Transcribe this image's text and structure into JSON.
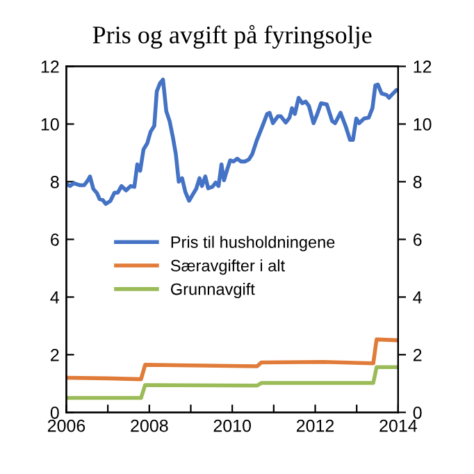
{
  "chart_data": {
    "type": "line",
    "title": "Pris og avgift på fyringsolje",
    "series": [
      {
        "name": "Pris til husholdningene",
        "color": "#4472c4",
        "x": [
          2006.0,
          2006.09,
          2006.18,
          2006.32,
          2006.43,
          2006.52,
          2006.57,
          2006.65,
          2006.74,
          2006.8,
          2006.88,
          2006.95,
          2007.06,
          2007.16,
          2007.24,
          2007.33,
          2007.44,
          2007.55,
          2007.64,
          2007.71,
          2007.78,
          2007.86,
          2007.95,
          2008.03,
          2008.12,
          2008.18,
          2008.26,
          2008.33,
          2008.41,
          2008.49,
          2008.57,
          2008.64,
          2008.71,
          2008.79,
          2008.87,
          2008.96,
          2009.05,
          2009.13,
          2009.21,
          2009.27,
          2009.35,
          2009.42,
          2009.52,
          2009.6,
          2009.67,
          2009.74,
          2009.8,
          2009.88,
          2009.95,
          2010.03,
          2010.12,
          2010.21,
          2010.3,
          2010.4,
          2010.48,
          2010.59,
          2010.72,
          2010.84,
          2010.9,
          2010.98,
          2011.1,
          2011.17,
          2011.29,
          2011.38,
          2011.44,
          2011.51,
          2011.6,
          2011.69,
          2011.77,
          2011.85,
          2011.96,
          2012.05,
          2012.14,
          2012.28,
          2012.41,
          2012.48,
          2012.61,
          2012.73,
          2012.84,
          2012.91,
          2012.99,
          2013.06,
          2013.18,
          2013.29,
          2013.38,
          2013.45,
          2013.51,
          2013.6,
          2013.72,
          2013.78,
          2013.87,
          2013.96,
          2014.0
        ],
        "values": [
          7.92,
          7.85,
          7.95,
          7.88,
          7.88,
          8.05,
          8.18,
          7.75,
          7.6,
          7.4,
          7.36,
          7.23,
          7.33,
          7.62,
          7.62,
          7.85,
          7.7,
          7.85,
          7.82,
          8.6,
          8.38,
          9.12,
          9.33,
          9.73,
          9.94,
          11.13,
          11.42,
          11.54,
          10.44,
          10.1,
          9.53,
          8.95,
          8.0,
          8.12,
          7.64,
          7.34,
          7.56,
          7.75,
          8.12,
          7.85,
          8.18,
          7.77,
          7.82,
          7.97,
          7.85,
          8.6,
          8.05,
          8.43,
          8.74,
          8.7,
          8.8,
          8.7,
          8.7,
          8.77,
          8.95,
          9.43,
          9.9,
          10.35,
          10.39,
          10.03,
          10.27,
          10.27,
          10.05,
          10.22,
          10.55,
          10.35,
          10.91,
          10.72,
          10.78,
          10.62,
          10.03,
          10.35,
          10.72,
          10.68,
          10.1,
          10.03,
          10.39,
          9.94,
          9.45,
          9.45,
          10.19,
          10.03,
          10.19,
          10.22,
          10.55,
          11.34,
          11.37,
          11.06,
          11.01,
          10.91,
          11.05,
          11.18,
          11.18
        ]
      },
      {
        "name": "Særavgifter i alt",
        "color": "#e07b39",
        "x": [
          2006.0,
          2007.0,
          2007.8,
          2007.9,
          2009.0,
          2010.6,
          2010.7,
          2012.2,
          2013.4,
          2013.48,
          2014.0
        ],
        "values": [
          1.2,
          1.18,
          1.15,
          1.65,
          1.63,
          1.6,
          1.73,
          1.75,
          1.7,
          2.53,
          2.5
        ]
      },
      {
        "name": "Grunnavgift",
        "color": "#9bbb59",
        "x": [
          2006.0,
          2007.8,
          2007.9,
          2010.6,
          2010.7,
          2013.4,
          2013.48,
          2014.0
        ],
        "values": [
          0.5,
          0.5,
          0.95,
          0.93,
          1.02,
          1.02,
          1.57,
          1.57
        ]
      }
    ],
    "xlim": [
      2006,
      2014
    ],
    "xticks": [
      2006,
      {
        "value": 2007,
        "label": null
      },
      2008,
      {
        "value": 2009,
        "label": null
      },
      2010,
      {
        "value": 2011,
        "label": null
      },
      2012,
      {
        "value": 2013,
        "label": null
      },
      2014
    ],
    "ylim": [
      0,
      12
    ],
    "yticks": [
      0,
      2,
      4,
      6,
      8,
      10,
      12
    ],
    "y2lim": [
      0,
      12
    ],
    "y2ticks": [
      0,
      2,
      4,
      6,
      8,
      10,
      12
    ],
    "legend": "center",
    "grid": false
  }
}
